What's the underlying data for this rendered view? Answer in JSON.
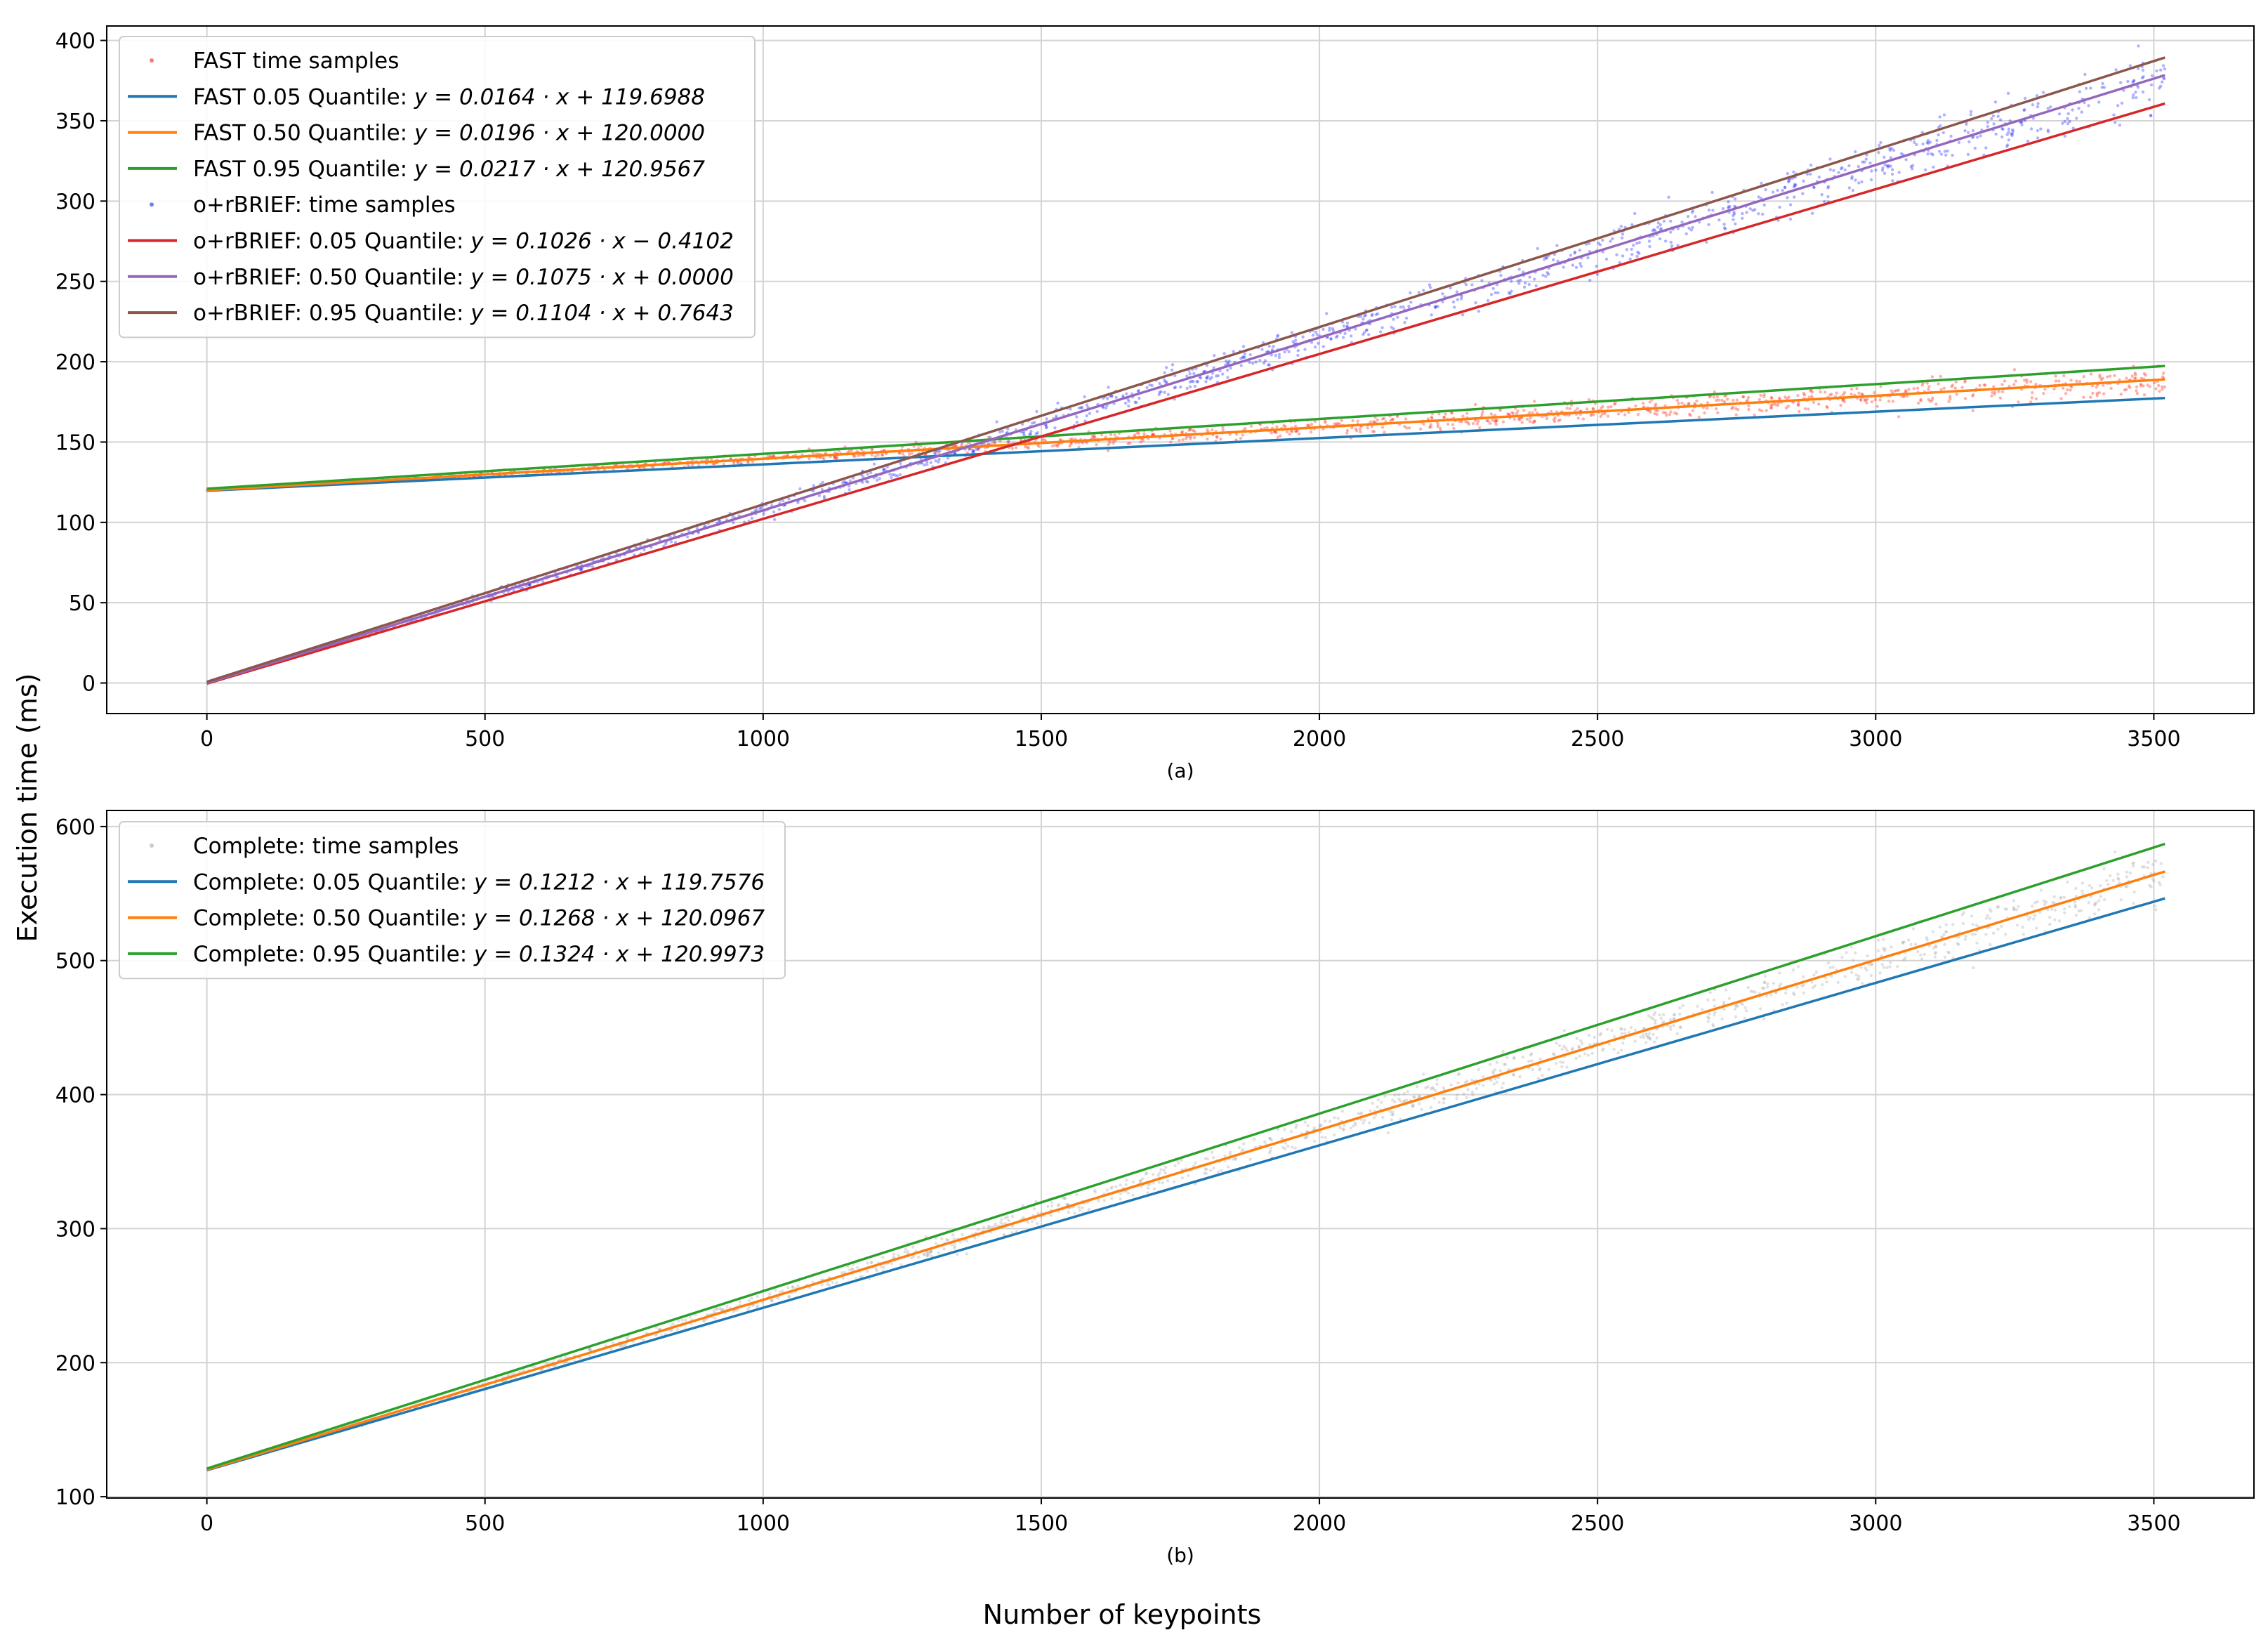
{
  "figure": {
    "ylabel": "Execution time (ms)",
    "xlabel": "Number of keypoints"
  },
  "chart_data": [
    {
      "type": "scatter",
      "subtitle": "(a)",
      "xlim": [
        -180,
        3680
      ],
      "ylim": [
        -19,
        409
      ],
      "x_ticks": [
        0,
        500,
        1000,
        1500,
        2000,
        2500,
        3000,
        3500
      ],
      "y_ticks": [
        0,
        50,
        100,
        150,
        200,
        250,
        300,
        350,
        400
      ],
      "grid": true,
      "legend_position": "top-left",
      "x_max_data": 3520,
      "series": [
        {
          "name": "FAST time samples",
          "kind": "scatter",
          "color": "#ff1e0c",
          "slope": 0.0196,
          "intercept": 120.0,
          "spread": 0.0013
        },
        {
          "name": "FAST 0.05 Quantile: ",
          "formula": "y = 0.0164 · x + 119.6988",
          "kind": "line",
          "color": "#1f77b4",
          "slope": 0.0164,
          "intercept": 119.6988
        },
        {
          "name": "FAST 0.50 Quantile: ",
          "formula": "y = 0.0196 · x + 120.0000",
          "kind": "line",
          "color": "#ff7f0e",
          "slope": 0.0196,
          "intercept": 120.0
        },
        {
          "name": "FAST 0.95 Quantile: ",
          "formula": "y = 0.0217 · x + 120.9567",
          "kind": "line",
          "color": "#2ca02c",
          "slope": 0.0217,
          "intercept": 120.9567
        },
        {
          "name": "o+rBRIEF: time samples",
          "kind": "scatter",
          "color": "#1a22ff",
          "slope": 0.1075,
          "intercept": 0.0,
          "spread": 0.0026
        },
        {
          "name": "o+rBRIEF: 0.05 Quantile: ",
          "formula": "y = 0.1026 · x − 0.4102",
          "kind": "line",
          "color": "#d62728",
          "slope": 0.1026,
          "intercept": -0.4102
        },
        {
          "name": "o+rBRIEF: 0.50 Quantile: ",
          "formula": "y = 0.1075 · x + 0.0000",
          "kind": "line",
          "color": "#9467bd",
          "slope": 0.1075,
          "intercept": 0.0
        },
        {
          "name": "o+rBRIEF: 0.95 Quantile: ",
          "formula": "y = 0.1104 · x + 0.7643",
          "kind": "line",
          "color": "#8c564b",
          "slope": 0.1104,
          "intercept": 0.7643
        }
      ]
    },
    {
      "type": "scatter",
      "subtitle": "(b)",
      "xlim": [
        -180,
        3680
      ],
      "ylim": [
        99,
        612
      ],
      "x_ticks": [
        0,
        500,
        1000,
        1500,
        2000,
        2500,
        3000,
        3500
      ],
      "y_ticks": [
        100,
        200,
        300,
        400,
        500,
        600
      ],
      "grid": true,
      "legend_position": "top-left",
      "x_max_data": 3520,
      "series": [
        {
          "name": "Complete: time samples",
          "kind": "scatter",
          "color": "#a9a9a9",
          "slope": 0.1268,
          "intercept": 120.0967,
          "spread": 0.0028
        },
        {
          "name": "Complete: 0.05 Quantile: ",
          "formula": "y = 0.1212 · x + 119.7576",
          "kind": "line",
          "color": "#1f77b4",
          "slope": 0.1212,
          "intercept": 119.7576
        },
        {
          "name": "Complete: 0.50 Quantile: ",
          "formula": "y = 0.1268 · x + 120.0967",
          "kind": "line",
          "color": "#ff7f0e",
          "slope": 0.1268,
          "intercept": 120.0967
        },
        {
          "name": "Complete: 0.95 Quantile: ",
          "formula": "y = 0.1324 · x + 120.9973",
          "kind": "line",
          "color": "#2ca02c",
          "slope": 0.1324,
          "intercept": 120.9973
        }
      ]
    }
  ]
}
